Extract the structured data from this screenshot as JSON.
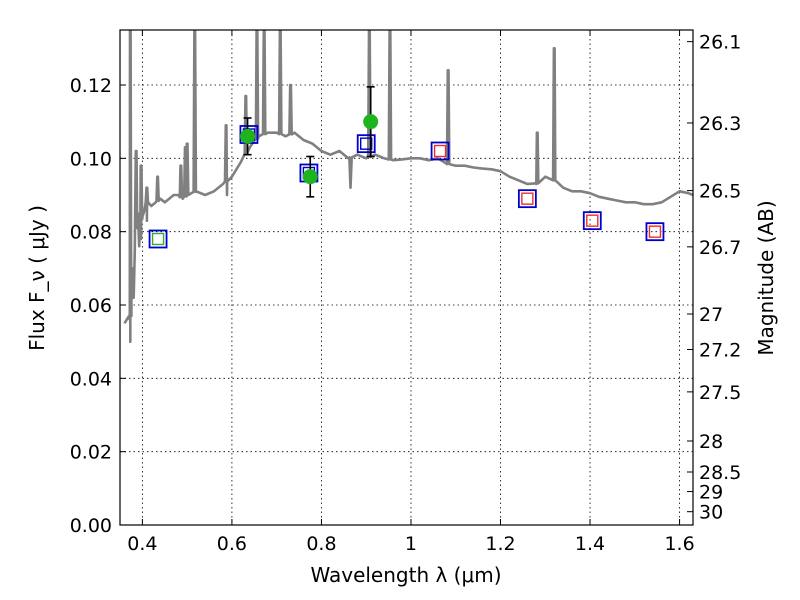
{
  "chart_data": {
    "type": "scatter",
    "title": "",
    "xlabel": "Wavelength  λ (μm)",
    "ylabel_left": "Flux  F_ν  ( μJy )",
    "ylabel_right": "Magnitude (AB)",
    "xlim": [
      0.35,
      1.63
    ],
    "ylim": [
      0.0,
      0.135
    ],
    "x_ticks": [
      "0.4",
      "0.6",
      "0.8",
      "1",
      "1.2",
      "1.4",
      "1.6"
    ],
    "y_ticks": [
      "0.00",
      "0.02",
      "0.04",
      "0.06",
      "0.08",
      "0.10",
      "0.12"
    ],
    "right_ticks": [
      "26.1",
      "26.3",
      "26.5",
      "26.7",
      "27",
      "27.2",
      "27.5",
      "28",
      "28.5",
      "29",
      "30"
    ],
    "grid": true,
    "colors": {
      "spectrum": "#808080",
      "observed_points": "#1eb41e",
      "model_blue": "#0000cc",
      "model_red": "#e83030",
      "model_green": "#33aa33",
      "errorbar": "#000000"
    },
    "spectrum": {
      "x": [
        0.36,
        0.365,
        0.37,
        0.372,
        0.375,
        0.378,
        0.38,
        0.383,
        0.386,
        0.39,
        0.395,
        0.4,
        0.405,
        0.41,
        0.42,
        0.43,
        0.44,
        0.45,
        0.46,
        0.47,
        0.48,
        0.49,
        0.5,
        0.52,
        0.54,
        0.56,
        0.58,
        0.6,
        0.62,
        0.64,
        0.66,
        0.68,
        0.7,
        0.72,
        0.74,
        0.76,
        0.78,
        0.8,
        0.82,
        0.84,
        0.86,
        0.88,
        0.9,
        0.92,
        0.94,
        0.96,
        0.98,
        1.0,
        1.02,
        1.04,
        1.06,
        1.08,
        1.1,
        1.12,
        1.14,
        1.16,
        1.18,
        1.2,
        1.22,
        1.24,
        1.26,
        1.28,
        1.3,
        1.32,
        1.34,
        1.36,
        1.38,
        1.4,
        1.42,
        1.44,
        1.46,
        1.48,
        1.5,
        1.52,
        1.54,
        1.56,
        1.58,
        1.6,
        1.62,
        1.63
      ],
      "y": [
        0.055,
        0.056,
        0.057,
        0.056,
        0.059,
        0.062,
        0.07,
        0.075,
        0.081,
        0.085,
        0.083,
        0.084,
        0.086,
        0.088,
        0.087,
        0.088,
        0.089,
        0.088,
        0.089,
        0.09,
        0.09,
        0.089,
        0.09,
        0.091,
        0.09,
        0.091,
        0.093,
        0.095,
        0.099,
        0.103,
        0.106,
        0.107,
        0.107,
        0.106,
        0.107,
        0.105,
        0.104,
        0.102,
        0.101,
        0.102,
        0.1,
        0.101,
        0.1,
        0.101,
        0.1,
        0.0995,
        0.0997,
        0.1,
        0.1,
        0.0995,
        0.1,
        0.0985,
        0.098,
        0.098,
        0.0975,
        0.0972,
        0.097,
        0.0965,
        0.095,
        0.094,
        0.093,
        0.093,
        0.095,
        0.094,
        0.092,
        0.091,
        0.091,
        0.0905,
        0.0895,
        0.089,
        0.0885,
        0.088,
        0.088,
        0.0875,
        0.0875,
        0.088,
        0.0895,
        0.091,
        0.0905,
        0.09
      ],
      "emission_lines": [
        {
          "x": 0.373,
          "peak": 0.135
        },
        {
          "x": 0.386,
          "peak": 0.102
        },
        {
          "x": 0.397,
          "peak": 0.098
        },
        {
          "x": 0.41,
          "peak": 0.092
        },
        {
          "x": 0.434,
          "peak": 0.095
        },
        {
          "x": 0.486,
          "peak": 0.098
        },
        {
          "x": 0.496,
          "peak": 0.103
        },
        {
          "x": 0.5,
          "peak": 0.104
        },
        {
          "x": 0.517,
          "peak": 0.135
        },
        {
          "x": 0.587,
          "peak": 0.109
        },
        {
          "x": 0.631,
          "peak": 0.117
        },
        {
          "x": 0.656,
          "peak": 0.135
        },
        {
          "x": 0.672,
          "peak": 0.135
        },
        {
          "x": 0.708,
          "peak": 0.135
        },
        {
          "x": 0.731,
          "peak": 0.12
        },
        {
          "x": 0.907,
          "peak": 0.135
        },
        {
          "x": 0.953,
          "peak": 0.135
        },
        {
          "x": 1.083,
          "peak": 0.124
        },
        {
          "x": 1.282,
          "peak": 0.107
        },
        {
          "x": 1.32,
          "peak": 0.13
        }
      ],
      "absorption_lines": [
        {
          "x": 0.373,
          "depth": 0.05
        },
        {
          "x": 0.378,
          "depth": 0.065
        },
        {
          "x": 0.393,
          "depth": 0.076
        },
        {
          "x": 0.397,
          "depth": 0.078
        },
        {
          "x": 0.41,
          "depth": 0.083
        },
        {
          "x": 0.589,
          "depth": 0.09
        },
        {
          "x": 0.865,
          "depth": 0.092
        }
      ]
    },
    "observed_points": {
      "x": [
        0.635,
        0.775,
        0.91
      ],
      "y": [
        0.106,
        0.095,
        0.11
      ],
      "yerr": [
        0.005,
        0.0055,
        0.0095
      ]
    },
    "model_points": {
      "x": [
        0.435,
        0.638,
        0.772,
        0.9,
        1.065,
        1.26,
        1.405,
        1.545
      ],
      "y": [
        0.078,
        0.1065,
        0.096,
        0.104,
        0.102,
        0.089,
        0.083,
        0.08
      ],
      "inner": [
        "green",
        "blue",
        "blue",
        "blue",
        "red",
        "red",
        "red",
        "red"
      ]
    }
  }
}
